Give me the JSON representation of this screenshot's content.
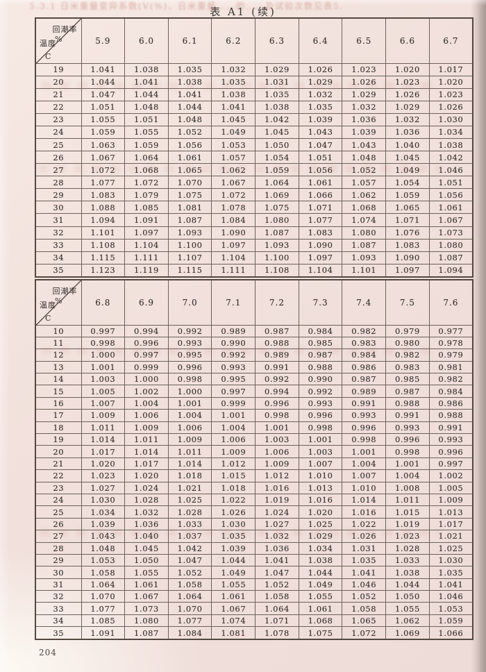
{
  "page": {
    "title": "表 A1 (续)",
    "page_number": "204",
    "corner_header": {
      "top_label": "回潮率",
      "top_unit": "%",
      "bottom_label": "温度",
      "bottom_unit": "C"
    },
    "artifacts": {
      "top_bleed": "5.3.1 日米重量变异系数(V(%)、日米重量……的……及试验次数见表5."
    },
    "colors": {
      "paper": "#f1e0db",
      "ink": "#35302b",
      "grid_border": "#6b6159",
      "outer_border": "#52483f",
      "bleed_ink": "#c6837c",
      "edge_shadow": "#a79793"
    }
  },
  "sections": [
    {
      "columns": [
        "5.9",
        "6.0",
        "6.1",
        "6.2",
        "6.3",
        "6.4",
        "6.5",
        "6.6",
        "6.7"
      ],
      "rows": [
        {
          "temp": "19",
          "values": [
            "1.041",
            "1.038",
            "1.035",
            "1.032",
            "1.029",
            "1.026",
            "1.023",
            "1.020",
            "1.017"
          ]
        },
        {
          "temp": "20",
          "values": [
            "1.044",
            "1.041",
            "1.038",
            "1.035",
            "1.031",
            "1.029",
            "1.026",
            "1.023",
            "1.020"
          ]
        },
        {
          "temp": "21",
          "values": [
            "1.047",
            "1.044",
            "1.041",
            "1.038",
            "1.035",
            "1.032",
            "1.029",
            "1.026",
            "1.023"
          ]
        },
        {
          "temp": "22",
          "values": [
            "1.051",
            "1.048",
            "1.044",
            "1.041",
            "1.038",
            "1.035",
            "1.032",
            "1.029",
            "1.026"
          ]
        },
        {
          "temp": "23",
          "values": [
            "1.055",
            "1.051",
            "1.048",
            "1.045",
            "1.042",
            "1.039",
            "1.036",
            "1.032",
            "1.030"
          ]
        },
        {
          "temp": "24",
          "values": [
            "1.059",
            "1.055",
            "1.052",
            "1.049",
            "1.045",
            "1.043",
            "1.039",
            "1.036",
            "1.034"
          ]
        },
        {
          "temp": "25",
          "values": [
            "1.063",
            "1.059",
            "1.056",
            "1.053",
            "1.050",
            "1.047",
            "1.043",
            "1.040",
            "1.038"
          ]
        },
        {
          "temp": "26",
          "values": [
            "1.067",
            "1.064",
            "1.061",
            "1.057",
            "1.054",
            "1.051",
            "1.048",
            "1.045",
            "1.042"
          ]
        },
        {
          "temp": "27",
          "values": [
            "1.072",
            "1.068",
            "1.065",
            "1.062",
            "1.059",
            "1.056",
            "1.052",
            "1.049",
            "1.046"
          ]
        },
        {
          "temp": "28",
          "values": [
            "1.077",
            "1.072",
            "1.070",
            "1.067",
            "1.064",
            "1.061",
            "1.057",
            "1.054",
            "1.051"
          ]
        },
        {
          "temp": "29",
          "values": [
            "1.083",
            "1.079",
            "1.075",
            "1.072",
            "1.069",
            "1.066",
            "1.062",
            "1.059",
            "1.056"
          ]
        },
        {
          "temp": "30",
          "values": [
            "1.088",
            "1.085",
            "1.081",
            "1.078",
            "1.075",
            "1.071",
            "1.068",
            "1.065",
            "1.061"
          ]
        },
        {
          "temp": "31",
          "values": [
            "1.094",
            "1.091",
            "1.087",
            "1.084",
            "1.080",
            "1.077",
            "1.074",
            "1.071",
            "1.067"
          ]
        },
        {
          "temp": "32",
          "values": [
            "1.101",
            "1.097",
            "1.093",
            "1.090",
            "1.087",
            "1.083",
            "1.080",
            "1.076",
            "1.073"
          ]
        },
        {
          "temp": "33",
          "values": [
            "1.108",
            "1.104",
            "1.100",
            "1.097",
            "1.093",
            "1.090",
            "1.087",
            "1.083",
            "1.080"
          ]
        },
        {
          "temp": "34",
          "values": [
            "1.115",
            "1.111",
            "1.107",
            "1.104",
            "1.100",
            "1.097",
            "1.093",
            "1.090",
            "1.087"
          ]
        },
        {
          "temp": "35",
          "values": [
            "1.123",
            "1.119",
            "1.115",
            "1.111",
            "1.108",
            "1.104",
            "1.101",
            "1.097",
            "1.094"
          ]
        }
      ]
    },
    {
      "columns": [
        "6.8",
        "6.9",
        "7.0",
        "7.1",
        "7.2",
        "7.3",
        "7.4",
        "7.5",
        "7.6"
      ],
      "rows": [
        {
          "temp": "10",
          "values": [
            "0.997",
            "0.994",
            "0.992",
            "0.989",
            "0.987",
            "0.984",
            "0.982",
            "0.979",
            "0.977"
          ]
        },
        {
          "temp": "11",
          "values": [
            "0.998",
            "0.996",
            "0.993",
            "0.990",
            "0.988",
            "0.985",
            "0.983",
            "0.980",
            "0.978"
          ]
        },
        {
          "temp": "12",
          "values": [
            "1.000",
            "0.997",
            "0.995",
            "0.992",
            "0.989",
            "0.987",
            "0.984",
            "0.982",
            "0.979"
          ]
        },
        {
          "temp": "13",
          "values": [
            "1.001",
            "0.999",
            "0.996",
            "0.993",
            "0.991",
            "0.988",
            "0.986",
            "0.983",
            "0.981"
          ]
        },
        {
          "temp": "14",
          "values": [
            "1.003",
            "1.000",
            "0.998",
            "0.995",
            "0.992",
            "0.990",
            "0.987",
            "0.985",
            "0.982"
          ]
        },
        {
          "temp": "15",
          "values": [
            "1.005",
            "1.002",
            "1.000",
            "0.997",
            "0.994",
            "0.992",
            "0.989",
            "0.987",
            "0.984"
          ]
        },
        {
          "temp": "16",
          "values": [
            "1.007",
            "1.004",
            "1.001",
            "0.999",
            "0.996",
            "0.993",
            "0.991",
            "0.988",
            "0.986"
          ]
        },
        {
          "temp": "17",
          "values": [
            "1.009",
            "1.006",
            "1.004",
            "1.001",
            "0.998",
            "0.996",
            "0.993",
            "0.991",
            "0.988"
          ]
        },
        {
          "temp": "18",
          "values": [
            "1.011",
            "1.009",
            "1.006",
            "1.004",
            "1.001",
            "0.998",
            "0.996",
            "0.993",
            "0.991"
          ]
        },
        {
          "temp": "19",
          "values": [
            "1.014",
            "1.011",
            "1.009",
            "1.006",
            "1.003",
            "1.001",
            "0.998",
            "0.996",
            "0.993"
          ]
        },
        {
          "temp": "20",
          "values": [
            "1.017",
            "1.014",
            "1.011",
            "1.009",
            "1.006",
            "1.003",
            "1.001",
            "0.998",
            "0.996"
          ]
        },
        {
          "temp": "21",
          "values": [
            "1.020",
            "1.017",
            "1.014",
            "1.012",
            "1.009",
            "1.007",
            "1.004",
            "1.001",
            "0.997"
          ]
        },
        {
          "temp": "22",
          "values": [
            "1.023",
            "1.020",
            "1.018",
            "1.015",
            "1.012",
            "1.010",
            "1.007",
            "1.004",
            "1.002"
          ]
        },
        {
          "temp": "23",
          "values": [
            "1.027",
            "1.024",
            "1.021",
            "1.018",
            "1.016",
            "1.013",
            "1.010",
            "1.008",
            "1.005"
          ]
        },
        {
          "temp": "24",
          "values": [
            "1.030",
            "1.028",
            "1.025",
            "1.022",
            "1.019",
            "1.016",
            "1.014",
            "1.011",
            "1.009"
          ]
        },
        {
          "temp": "25",
          "values": [
            "1.034",
            "1.032",
            "1.028",
            "1.026",
            "1.024",
            "1.020",
            "1.016",
            "1.015",
            "1.013"
          ]
        },
        {
          "temp": "26",
          "values": [
            "1.039",
            "1.036",
            "1.033",
            "1.030",
            "1.027",
            "1.025",
            "1.022",
            "1.019",
            "1.017"
          ]
        },
        {
          "temp": "27",
          "values": [
            "1.043",
            "1.040",
            "1.037",
            "1.035",
            "1.032",
            "1.029",
            "1.026",
            "1.023",
            "1.021"
          ]
        },
        {
          "temp": "28",
          "values": [
            "1.048",
            "1.045",
            "1.042",
            "1.039",
            "1.036",
            "1.034",
            "1.031",
            "1.028",
            "1.025"
          ]
        },
        {
          "temp": "29",
          "values": [
            "1.053",
            "1.050",
            "1.047",
            "1.044",
            "1.041",
            "1.038",
            "1.035",
            "1.033",
            "1.030"
          ]
        },
        {
          "temp": "30",
          "values": [
            "1.058",
            "1.055",
            "1.052",
            "1.049",
            "1.047",
            "1.044",
            "1.041",
            "1.038",
            "1.035"
          ]
        },
        {
          "temp": "31",
          "values": [
            "1.064",
            "1.061",
            "1.058",
            "1.055",
            "1.052",
            "1.049",
            "1.046",
            "1.044",
            "1.041"
          ]
        },
        {
          "temp": "32",
          "values": [
            "1.070",
            "1.067",
            "1.064",
            "1.061",
            "1.058",
            "1.055",
            "1.052",
            "1.050",
            "1.046"
          ]
        },
        {
          "temp": "33",
          "values": [
            "1.077",
            "1.073",
            "1.070",
            "1.067",
            "1.064",
            "1.061",
            "1.058",
            "1.055",
            "1.053"
          ]
        },
        {
          "temp": "34",
          "values": [
            "1.085",
            "1.080",
            "1.077",
            "1.074",
            "1.071",
            "1.068",
            "1.065",
            "1.062",
            "1.059"
          ]
        },
        {
          "temp": "35",
          "values": [
            "1.091",
            "1.087",
            "1.084",
            "1.081",
            "1.078",
            "1.075",
            "1.072",
            "1.069",
            "1.066"
          ]
        }
      ]
    }
  ]
}
